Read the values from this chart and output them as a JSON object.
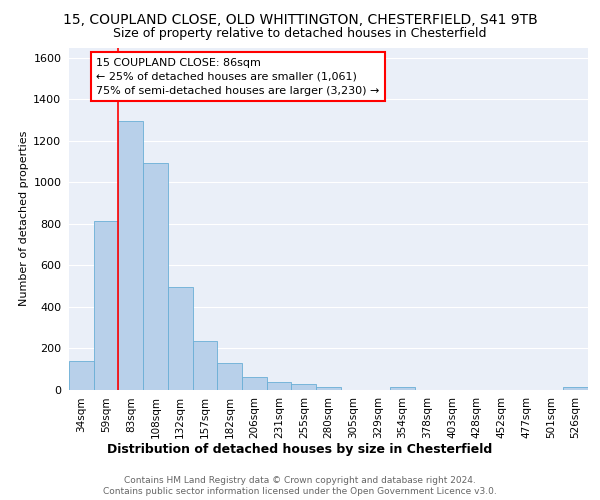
{
  "title_line1": "15, COUPLAND CLOSE, OLD WHITTINGTON, CHESTERFIELD, S41 9TB",
  "title_line2": "Size of property relative to detached houses in Chesterfield",
  "xlabel": "Distribution of detached houses by size in Chesterfield",
  "ylabel": "Number of detached properties",
  "categories": [
    "34sqm",
    "59sqm",
    "83sqm",
    "108sqm",
    "132sqm",
    "157sqm",
    "182sqm",
    "206sqm",
    "231sqm",
    "255sqm",
    "280sqm",
    "305sqm",
    "329sqm",
    "354sqm",
    "378sqm",
    "403sqm",
    "428sqm",
    "452sqm",
    "477sqm",
    "501sqm",
    "526sqm"
  ],
  "values": [
    140,
    815,
    1295,
    1095,
    495,
    235,
    130,
    65,
    38,
    27,
    14,
    0,
    0,
    14,
    0,
    0,
    0,
    0,
    0,
    0,
    14
  ],
  "bar_color": "#b8d0ea",
  "bar_edge_color": "#6aaed6",
  "annotation_text": "15 COUPLAND CLOSE: 86sqm\n← 25% of detached houses are smaller (1,061)\n75% of semi-detached houses are larger (3,230) →",
  "vline_bar_idx": 2,
  "ylim": [
    0,
    1650
  ],
  "yticks": [
    0,
    200,
    400,
    600,
    800,
    1000,
    1200,
    1400,
    1600
  ],
  "footer_line1": "Contains HM Land Registry data © Crown copyright and database right 2024.",
  "footer_line2": "Contains public sector information licensed under the Open Government Licence v3.0.",
  "bg_color": "#eaeff8",
  "bar_width": 1.0,
  "grid_color": "#ffffff",
  "title1_fontsize": 10,
  "title2_fontsize": 9,
  "annotation_fontsize": 8,
  "ylabel_fontsize": 8,
  "xlabel_fontsize": 9
}
